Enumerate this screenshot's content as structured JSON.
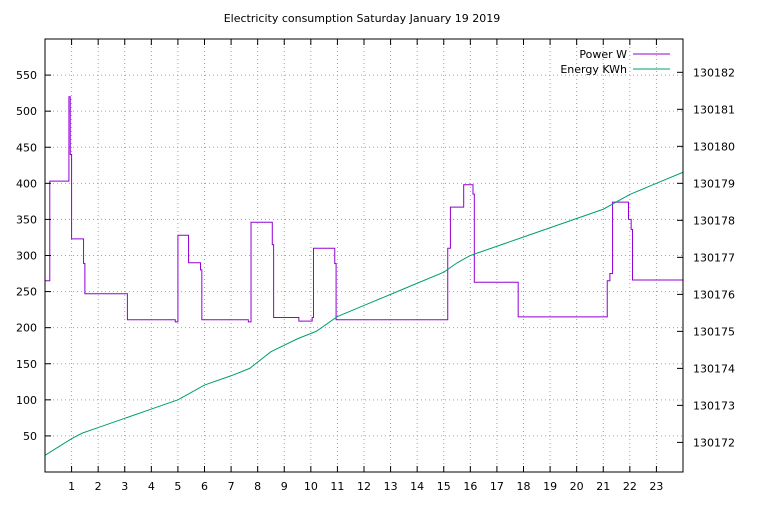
{
  "chart_data": {
    "type": "line",
    "title": "Electricity consumption Saturday January 19 2019",
    "xlabel": "",
    "ylabel": "",
    "y2label": "",
    "xlim": [
      0,
      24
    ],
    "ylim": [
      0,
      600
    ],
    "y2lim": [
      130171.2,
      130182.9
    ],
    "x_ticks": [
      1,
      2,
      3,
      4,
      5,
      6,
      7,
      8,
      9,
      10,
      11,
      12,
      13,
      14,
      15,
      16,
      17,
      18,
      19,
      20,
      21,
      22,
      23
    ],
    "y_ticks": [
      50,
      100,
      150,
      200,
      250,
      300,
      350,
      400,
      450,
      500,
      550
    ],
    "y2_ticks": [
      130172,
      130173,
      130174,
      130175,
      130176,
      130177,
      130178,
      130179,
      130180,
      130181,
      130182
    ],
    "grid": true,
    "legend_position": "top-right",
    "series": [
      {
        "name": "Power W",
        "axis": "y",
        "color": "#9400d3",
        "step": true,
        "x": [
          0,
          0.18,
          0.25,
          0.9,
          0.95,
          1.0,
          1.05,
          1.45,
          1.5,
          3.1,
          4.9,
          5.0,
          5.4,
          5.85,
          5.9,
          7.65,
          7.75,
          8.55,
          8.6,
          9.55,
          10.05,
          10.1,
          10.9,
          10.95,
          14.4,
          15.15,
          15.25,
          15.75,
          16.1,
          16.15,
          17.8,
          21.15,
          21.25,
          21.35,
          21.95,
          22.05,
          22.1,
          24
        ],
        "y": [
          265,
          403,
          403,
          520,
          440,
          323,
          323,
          289,
          247,
          211,
          208,
          328,
          290,
          280,
          211,
          208,
          346,
          315,
          214,
          209,
          214,
          310,
          289,
          211,
          211,
          310,
          367,
          398,
          385,
          263,
          215,
          265,
          275,
          374,
          350,
          336,
          266,
          266
        ]
      },
      {
        "name": "Energy KWh",
        "axis": "y2",
        "color": "#009e73",
        "step": false,
        "x": [
          0,
          1,
          1.4,
          2,
          3,
          4,
          5,
          6,
          7,
          7.7,
          8.5,
          9.5,
          10.2,
          11,
          12,
          13,
          14,
          15,
          15.5,
          16,
          17,
          18,
          19,
          20,
          21,
          22,
          23,
          24
        ],
        "y": [
          130171.65,
          130172.1,
          130172.25,
          130172.4,
          130172.65,
          130172.9,
          130173.15,
          130173.55,
          130173.8,
          130174.0,
          130174.45,
          130174.8,
          130175.0,
          130175.4,
          130175.7,
          130176.0,
          130176.3,
          130176.6,
          130176.85,
          130177.05,
          130177.3,
          130177.55,
          130177.8,
          130178.05,
          130178.3,
          130178.7,
          130179.0,
          130179.3
        ]
      }
    ]
  }
}
